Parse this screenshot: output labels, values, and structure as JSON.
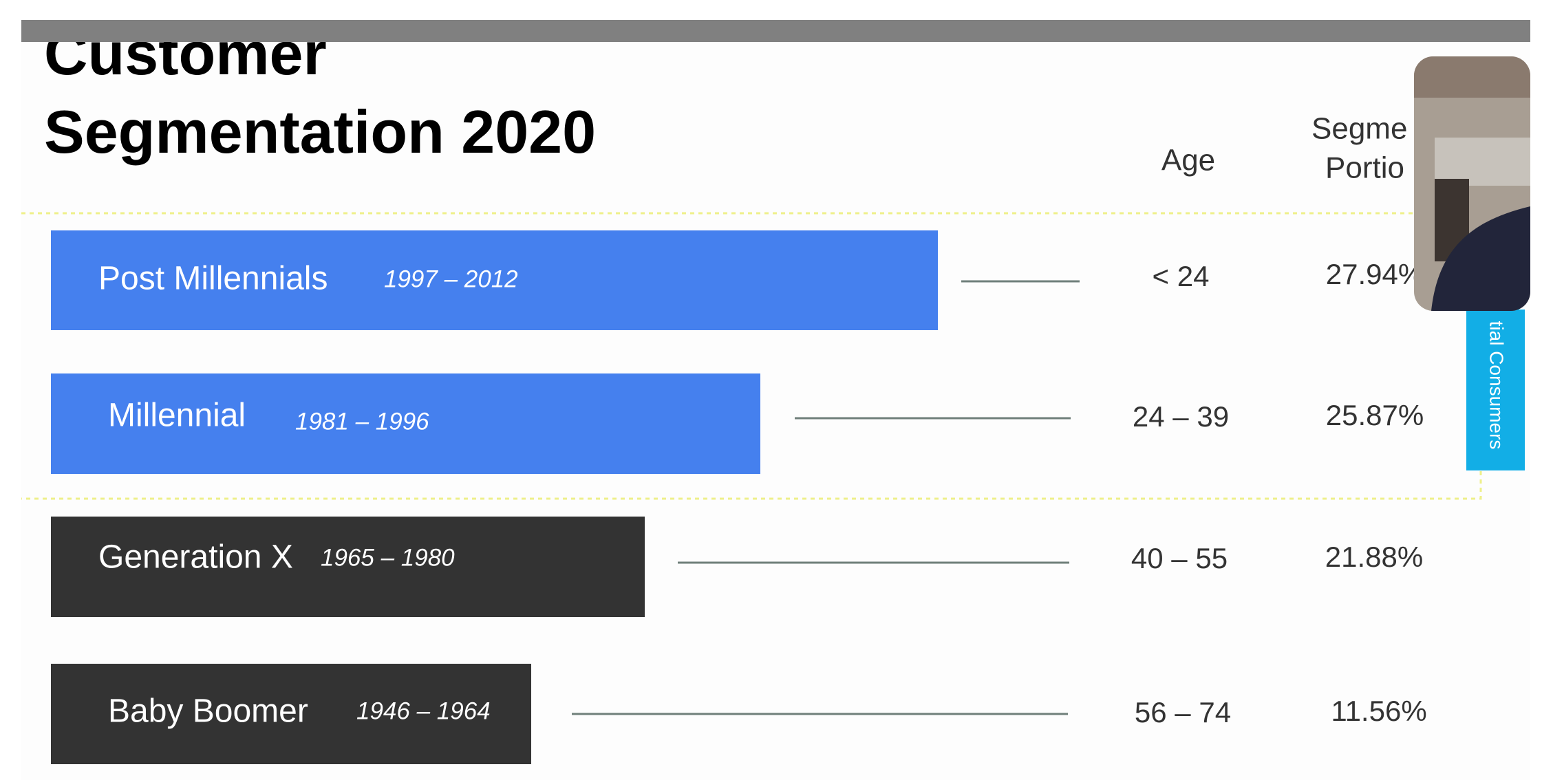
{
  "slide": {
    "title": [
      "Customer",
      "Segmentation 2020"
    ],
    "headers": {
      "age": "Age",
      "portion": [
        "Segme",
        "Portio"
      ]
    },
    "rows": [
      {
        "label": "Post Millennials",
        "years": "1997 – 2012",
        "age": "< 24",
        "portion": "27.94%"
      },
      {
        "label": "Millennial",
        "years": "1981 – 1996",
        "age": "24 – 39",
        "portion": "25.87%"
      },
      {
        "label": "Generation X",
        "years": "1965 – 1980",
        "age": "40 – 55",
        "portion": "21.88%"
      },
      {
        "label": "Baby Boomer",
        "years": "1946 – 1964",
        "age": "56 – 74",
        "portion": "11.56%"
      }
    ],
    "side_tag": "tial Consumers"
  }
}
